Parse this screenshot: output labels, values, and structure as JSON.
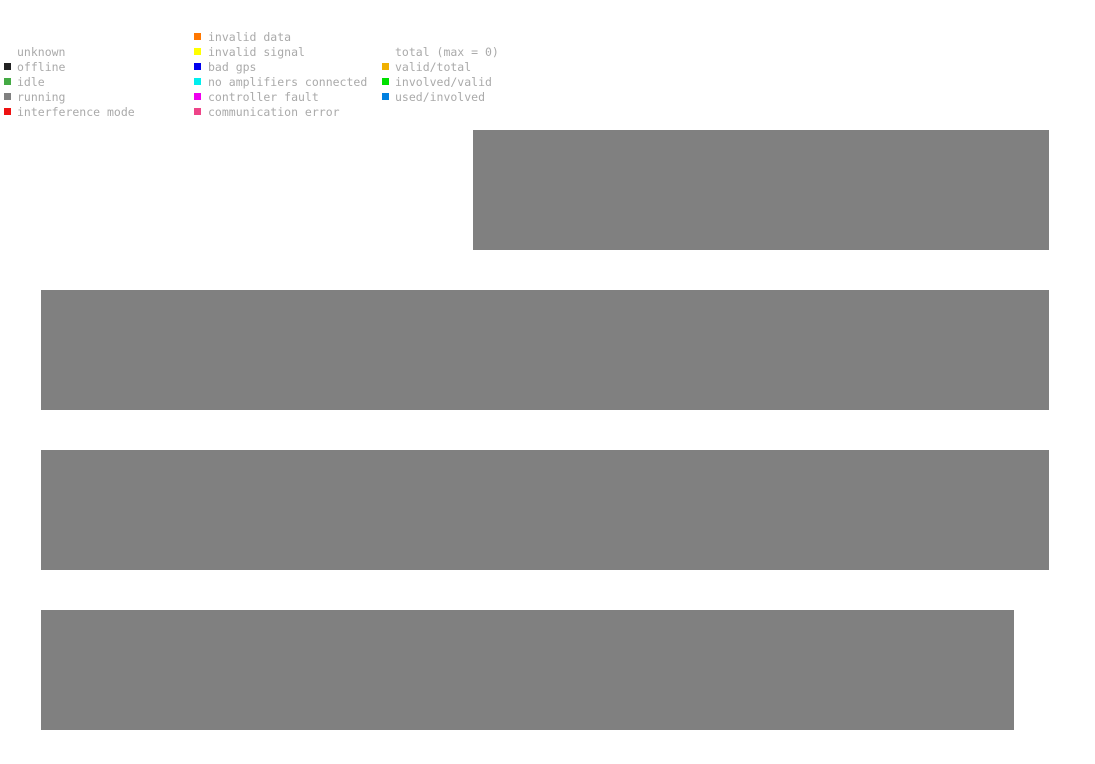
{
  "legend": {
    "columns": [
      {
        "items": [
          {
            "label": "unknown"
          },
          {
            "label": "offline",
            "color": "#222222"
          },
          {
            "label": "idle",
            "color": "#44aa44"
          },
          {
            "label": "running",
            "color": "#808080"
          },
          {
            "label": "interference mode",
            "color": "#ee1111"
          }
        ]
      },
      {
        "items": [
          {
            "label": "invalid data",
            "color": "#ff7700"
          },
          {
            "label": "invalid signal",
            "color": "#ffff00"
          },
          {
            "label": "bad gps",
            "color": "#0000ee"
          },
          {
            "label": "no amplifiers connected",
            "color": "#00eeee"
          },
          {
            "label": "controller fault",
            "color": "#ee00ee"
          },
          {
            "label": "communication error",
            "color": "#ee4488"
          }
        ]
      },
      {
        "items": [
          {
            "label": "total (max = 0)"
          },
          {
            "label": "valid/total",
            "color": "#f0b000"
          },
          {
            "label": "involved/valid",
            "color": "#00e000"
          },
          {
            "label": "used/involved",
            "color": "#0080e0"
          }
        ]
      }
    ]
  }
}
